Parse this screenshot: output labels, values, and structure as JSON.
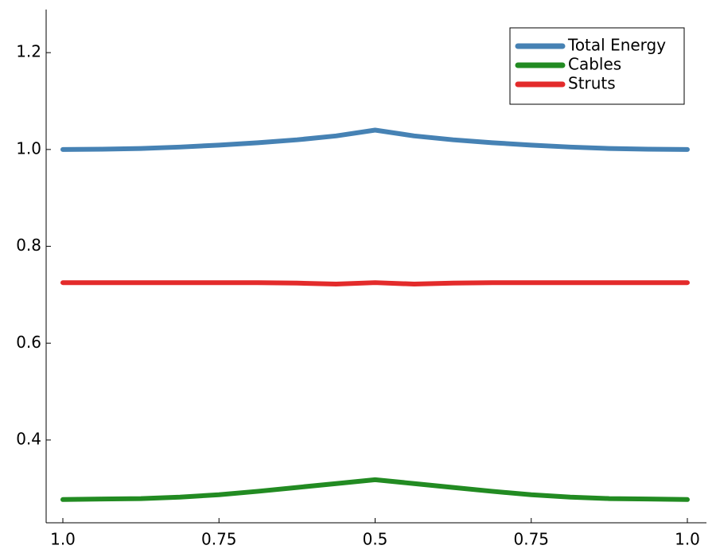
{
  "chart_data": {
    "type": "line",
    "categories": [
      "1.0",
      null,
      null,
      null,
      "0.75",
      null,
      null,
      null,
      "0.5",
      null,
      null,
      null,
      "0.75",
      null,
      null,
      null,
      "1.0"
    ],
    "series": [
      {
        "name": "Total Energy",
        "color": "#4682b4",
        "values": [
          1.0,
          1.0005,
          1.002,
          1.005,
          1.009,
          1.014,
          1.02,
          1.028,
          1.04,
          1.028,
          1.02,
          1.014,
          1.009,
          1.005,
          1.002,
          1.0005,
          1.0
        ]
      },
      {
        "name": "Cables",
        "color": "#228b22",
        "values": [
          0.277,
          0.278,
          0.279,
          0.282,
          0.287,
          0.294,
          0.302,
          0.31,
          0.318,
          0.31,
          0.302,
          0.294,
          0.287,
          0.282,
          0.279,
          0.278,
          0.277
        ]
      },
      {
        "name": "Struts",
        "color": "#e32b2b",
        "values": [
          0.725,
          0.725,
          0.725,
          0.725,
          0.725,
          0.725,
          0.724,
          0.722,
          0.725,
          0.722,
          0.724,
          0.725,
          0.725,
          0.725,
          0.725,
          0.725,
          0.725
        ]
      }
    ],
    "ylim": [
      0.229,
      1.289
    ],
    "yticks": [
      {
        "value": 0.4,
        "label": "0.4"
      },
      {
        "value": 0.6,
        "label": "0.6"
      },
      {
        "value": 0.8,
        "label": "0.8"
      },
      {
        "value": 1.0,
        "label": "1.0"
      },
      {
        "value": 1.2,
        "label": "1.2"
      }
    ],
    "legend": "top-right",
    "grid": false
  }
}
